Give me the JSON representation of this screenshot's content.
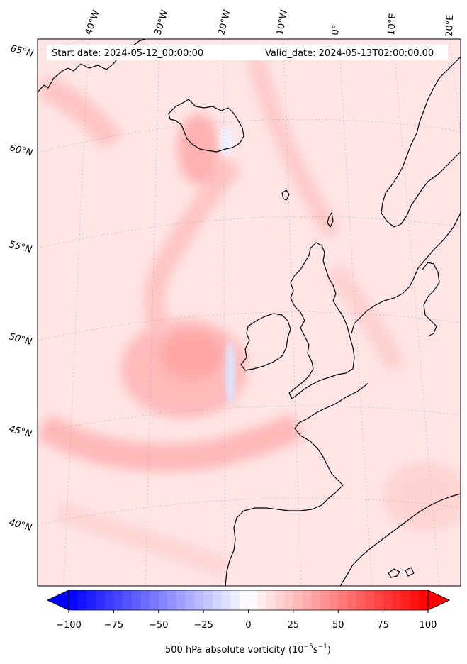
{
  "header": {
    "start_date": "Start date: 2024-05-12_00:00:00",
    "valid_date": "Valid_date: 2024-05-13T02:00:00.00"
  },
  "map": {
    "lon_labels": [
      "40°W",
      "30°W",
      "20°W",
      "10°W",
      "0°",
      "10°E",
      "20°E"
    ],
    "lat_labels": [
      "65°N",
      "60°N",
      "55°N",
      "50°N",
      "45°N",
      "40°N"
    ],
    "field": "500 hPa absolute vorticity",
    "region": "North Atlantic and Western Europe"
  },
  "colorbar": {
    "ticks": [
      "−100",
      "−75",
      "−50",
      "−25",
      "0",
      "25",
      "50",
      "75",
      "100"
    ],
    "tick_values": [
      -100,
      -75,
      -50,
      -25,
      0,
      25,
      50,
      75,
      100
    ],
    "range": [
      -100,
      100
    ],
    "levels": 40,
    "colormap": "bwr",
    "extend": "both",
    "label": "500 hPa absolute vorticity (10",
    "label_exp1": "−5",
    "label_mid": "s",
    "label_exp2": "−1",
    "label_end": ")"
  },
  "colors": {
    "negative": "#0000ff",
    "zero": "#ffffff",
    "positive": "#ff0000",
    "background_field": "#ffe4e4",
    "coastline": "#000000"
  }
}
